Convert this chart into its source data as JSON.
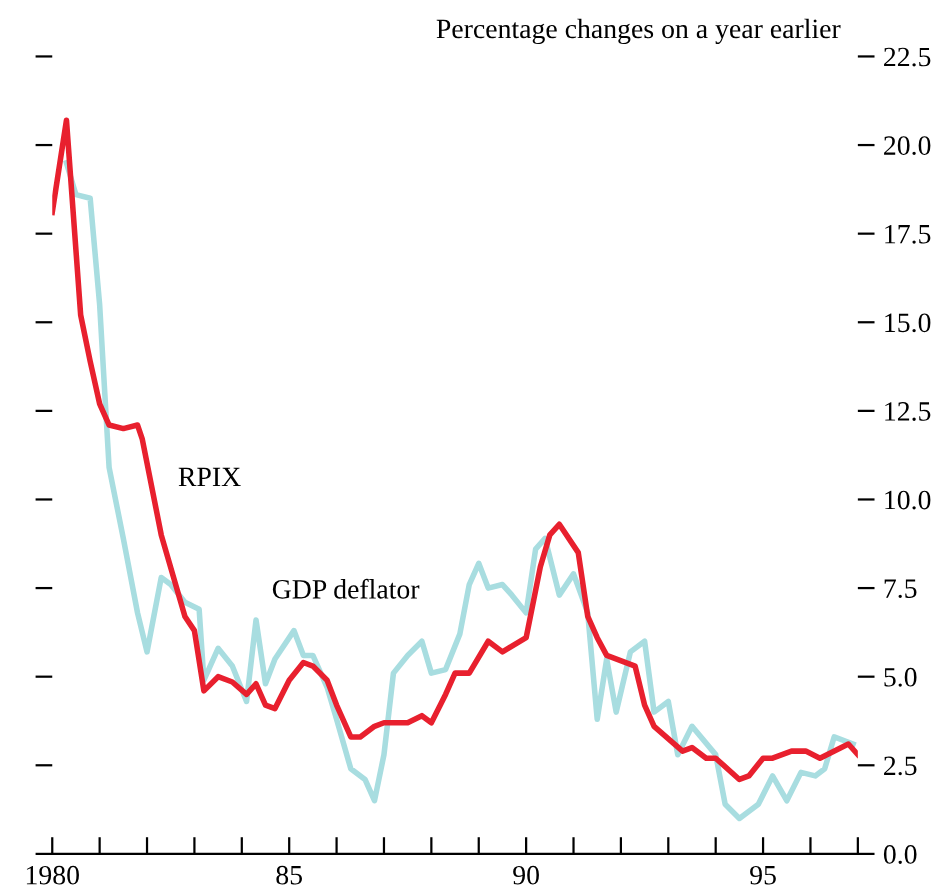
{
  "chart_data": {
    "type": "line",
    "title": "Percentage changes on a year earlier",
    "xlim": [
      1980,
      1997
    ],
    "xticks": [
      {
        "value": 1980,
        "label": "1980"
      },
      {
        "value": 1981,
        "label": null
      },
      {
        "value": 1982,
        "label": null
      },
      {
        "value": 1983,
        "label": null
      },
      {
        "value": 1984,
        "label": null
      },
      {
        "value": 1985,
        "label": "85"
      },
      {
        "value": 1986,
        "label": null
      },
      {
        "value": 1987,
        "label": null
      },
      {
        "value": 1988,
        "label": null
      },
      {
        "value": 1989,
        "label": null
      },
      {
        "value": 1990,
        "label": "90"
      },
      {
        "value": 1991,
        "label": null
      },
      {
        "value": 1992,
        "label": null
      },
      {
        "value": 1993,
        "label": null
      },
      {
        "value": 1994,
        "label": null
      },
      {
        "value": 1995,
        "label": "95"
      },
      {
        "value": 1996,
        "label": null
      },
      {
        "value": 1997,
        "label": null
      }
    ],
    "ylim": [
      0,
      22.5
    ],
    "yticks": [
      {
        "value": 0,
        "label": "0.0"
      },
      {
        "value": 2.5,
        "label": "2.5"
      },
      {
        "value": 5,
        "label": "5.0"
      },
      {
        "value": 7.5,
        "label": "7.5"
      },
      {
        "value": 10,
        "label": "10.0"
      },
      {
        "value": 12.5,
        "label": "12.5"
      },
      {
        "value": 15,
        "label": "15.0"
      },
      {
        "value": 17.5,
        "label": "17.5"
      },
      {
        "value": 20,
        "label": "20.0"
      },
      {
        "value": 22.5,
        "label": "22.5"
      }
    ],
    "grid": false,
    "marker": "none",
    "line_style": "solid",
    "series": [
      {
        "name": "GDP deflator",
        "color": "#a8dde0",
        "x": [
          1980.3,
          1980.5,
          1980.8,
          1981.0,
          1981.2,
          1981.5,
          1981.8,
          1982.0,
          1982.3,
          1982.5,
          1982.8,
          1983.1,
          1983.2,
          1983.5,
          1983.8,
          1984.1,
          1984.3,
          1984.5,
          1984.7,
          1985.1,
          1985.3,
          1985.5,
          1985.8,
          1986.0,
          1986.3,
          1986.6,
          1986.8,
          1987.0,
          1987.2,
          1987.5,
          1987.8,
          1988.0,
          1988.3,
          1988.6,
          1988.8,
          1989.0,
          1989.2,
          1989.5,
          1989.7,
          1990.0,
          1990.2,
          1990.4,
          1990.7,
          1991.0,
          1991.3,
          1991.5,
          1991.7,
          1991.9,
          1992.2,
          1992.5,
          1992.7,
          1993.0,
          1993.2,
          1993.5,
          1994.0,
          1994.2,
          1994.5,
          1994.9,
          1995.2,
          1995.5,
          1995.8,
          1996.1,
          1996.3,
          1996.5,
          1996.9
        ],
        "values": [
          19.5,
          18.6,
          18.5,
          15.5,
          10.9,
          8.9,
          6.8,
          5.7,
          7.8,
          7.6,
          7.1,
          6.9,
          4.9,
          5.8,
          5.3,
          4.3,
          6.6,
          4.8,
          5.5,
          6.3,
          5.6,
          5.6,
          4.7,
          3.8,
          2.4,
          2.1,
          1.5,
          2.8,
          5.1,
          5.6,
          6.0,
          5.1,
          5.2,
          6.2,
          7.6,
          8.2,
          7.5,
          7.6,
          7.3,
          6.8,
          8.6,
          8.9,
          7.3,
          7.9,
          6.8,
          3.8,
          5.5,
          4.0,
          5.7,
          6.0,
          4.0,
          4.3,
          2.8,
          3.6,
          2.8,
          1.4,
          1.0,
          1.4,
          2.2,
          1.5,
          2.3,
          2.2,
          2.4,
          3.3,
          3.1
        ]
      },
      {
        "name": "RPIX",
        "color": "#e8202e",
        "x": [
          1980.0,
          1980.3,
          1980.6,
          1980.8,
          1981.0,
          1981.2,
          1981.5,
          1981.8,
          1981.9,
          1982.3,
          1982.8,
          1983.0,
          1983.2,
          1983.5,
          1983.8,
          1984.1,
          1984.3,
          1984.5,
          1984.7,
          1985.0,
          1985.3,
          1985.5,
          1985.8,
          1986.0,
          1986.3,
          1986.5,
          1986.8,
          1987.0,
          1987.3,
          1987.5,
          1987.8,
          1988.0,
          1988.3,
          1988.5,
          1988.8,
          1989.2,
          1989.5,
          1990.0,
          1990.3,
          1990.5,
          1990.7,
          1991.1,
          1991.3,
          1991.5,
          1991.7,
          1992.3,
          1992.5,
          1992.7,
          1993.3,
          1993.5,
          1993.8,
          1994.0,
          1994.5,
          1994.7,
          1995.0,
          1995.2,
          1995.6,
          1995.9,
          1996.2,
          1996.8,
          1997.0
        ],
        "values": [
          18.1,
          20.7,
          15.2,
          13.9,
          12.7,
          12.1,
          12.0,
          12.1,
          11.7,
          9.0,
          6.7,
          6.3,
          4.6,
          5.0,
          4.85,
          4.5,
          4.8,
          4.2,
          4.1,
          4.9,
          5.4,
          5.3,
          4.9,
          4.2,
          3.3,
          3.3,
          3.6,
          3.7,
          3.7,
          3.7,
          3.9,
          3.7,
          4.5,
          5.1,
          5.1,
          6.0,
          5.7,
          6.1,
          8.1,
          9.0,
          9.3,
          8.5,
          6.7,
          6.1,
          5.6,
          5.3,
          4.2,
          3.6,
          2.9,
          3.0,
          2.7,
          2.7,
          2.1,
          2.2,
          2.7,
          2.7,
          2.9,
          2.9,
          2.7,
          3.1,
          2.8
        ]
      }
    ]
  }
}
